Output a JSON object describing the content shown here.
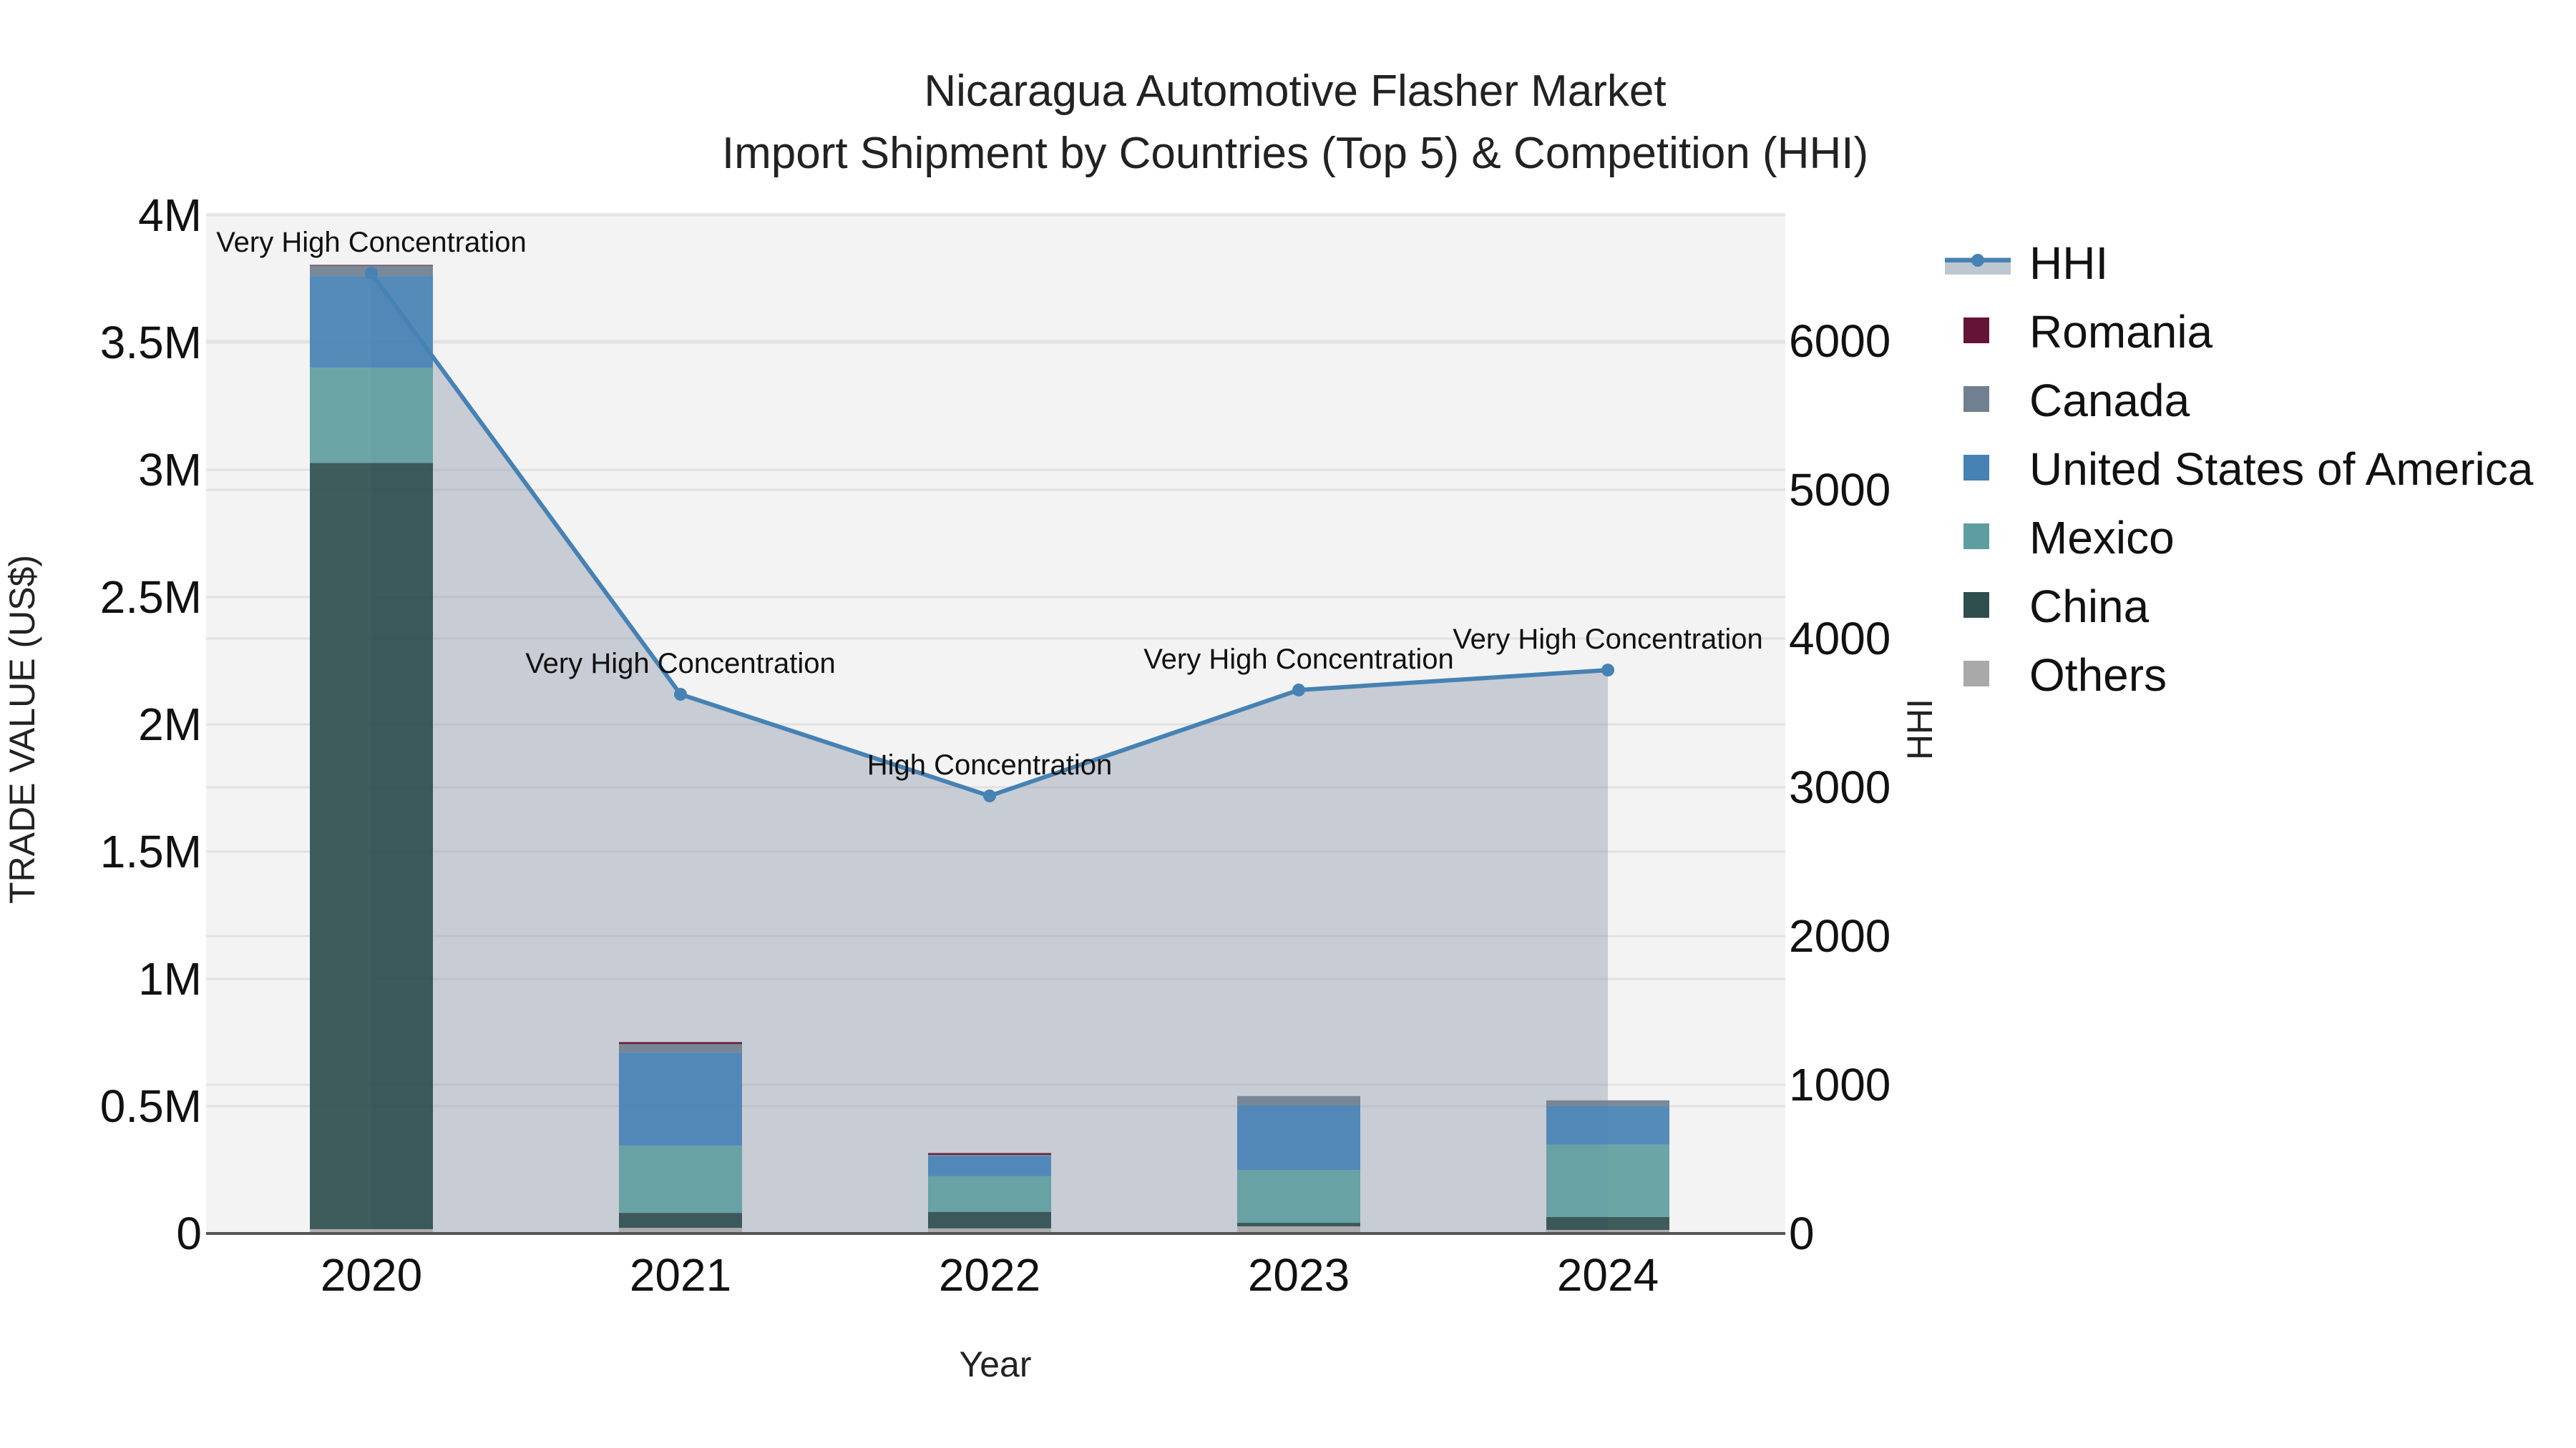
{
  "chart_data": {
    "type": "bar",
    "title": "Nicaragua Automotive Flasher Market",
    "subtitle": "Import Shipment by Countries (Top 5) & Competition (HHI)",
    "xlabel": "Year",
    "ylabel": "TRADE VALUE (US$)",
    "y2label": "HHI",
    "categories": [
      "2020",
      "2021",
      "2022",
      "2023",
      "2024"
    ],
    "ylim": [
      0,
      4050000
    ],
    "y2lim": [
      0,
      6900
    ],
    "yticks": [
      0,
      500000,
      1000000,
      1500000,
      2000000,
      2500000,
      3000000,
      3500000,
      4000000
    ],
    "ytick_labels": [
      "0",
      "0.5M",
      "1M",
      "1.5M",
      "2M",
      "2.5M",
      "3M",
      "3.5M",
      "4M"
    ],
    "y2ticks": [
      0,
      1000,
      2000,
      3000,
      4000,
      5000,
      6000
    ],
    "y2tick_labels": [
      "0",
      "1000",
      "2000",
      "3000",
      "4000",
      "5000",
      "6000"
    ],
    "stack_order_bottom_to_top": [
      "Others",
      "China",
      "Mexico",
      "United States of America",
      "Canada",
      "Romania"
    ],
    "series": [
      {
        "name": "Others",
        "color": "#A9A9A9",
        "values": [
          17000,
          22000,
          20000,
          28000,
          14000
        ]
      },
      {
        "name": "China",
        "color": "#2F4F4F",
        "values": [
          3010000,
          59000,
          65000,
          14000,
          51000
        ]
      },
      {
        "name": "Mexico",
        "color": "#5F9EA0",
        "values": [
          374000,
          264000,
          140000,
          208000,
          284000
        ]
      },
      {
        "name": "United States of America",
        "color": "#4682B4",
        "values": [
          360000,
          365000,
          79000,
          253000,
          152000
        ]
      },
      {
        "name": "Canada",
        "color": "#708090",
        "values": [
          42000,
          34000,
          5000,
          37000,
          22000
        ]
      },
      {
        "name": "Romania",
        "color": "#641537",
        "values": [
          2000,
          8000,
          7000,
          0,
          0
        ]
      }
    ],
    "hhi": {
      "name": "HHI",
      "axis": "right",
      "color": "#4682B4",
      "fill": "rgba(150,160,180,0.45)",
      "values": [
        6457,
        3625,
        2942,
        3654,
        3788
      ],
      "annotations": [
        "Very High Concentration",
        "Very High Concentration",
        "High Concentration",
        "Very High Concentration",
        "Very High Concentration"
      ]
    },
    "grid": true,
    "legend_position": "right",
    "legend": [
      "HHI",
      "Romania",
      "Canada",
      "United States of America",
      "Mexico",
      "China",
      "Others"
    ]
  }
}
